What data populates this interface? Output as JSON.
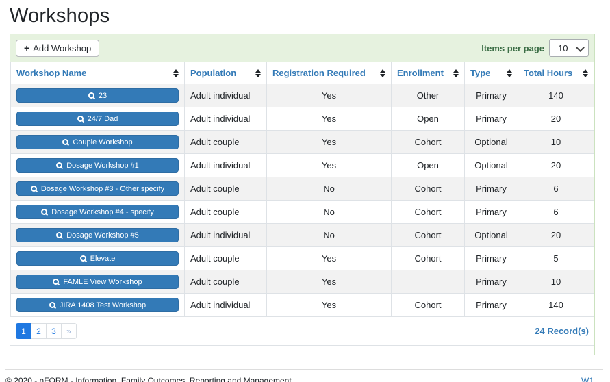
{
  "page": {
    "title": "Workshops"
  },
  "toolbar": {
    "add_button_label": "Add Workshop",
    "add_button_plus": "+",
    "items_per_page_label": "Items per page",
    "items_per_page_value": "10"
  },
  "table": {
    "columns": [
      "Workshop Name",
      "Population",
      "Registration Required",
      "Enrollment",
      "Type",
      "Total Hours"
    ],
    "rows": [
      {
        "name": "23",
        "population": "Adult individual",
        "registration_required": "Yes",
        "enrollment": "Other",
        "type": "Primary",
        "total_hours": "140"
      },
      {
        "name": "24/7 Dad",
        "population": "Adult individual",
        "registration_required": "Yes",
        "enrollment": "Open",
        "type": "Primary",
        "total_hours": "20"
      },
      {
        "name": "Couple Workshop",
        "population": "Adult couple",
        "registration_required": "Yes",
        "enrollment": "Cohort",
        "type": "Optional",
        "total_hours": "10"
      },
      {
        "name": "Dosage Workshop #1",
        "population": "Adult individual",
        "registration_required": "Yes",
        "enrollment": "Open",
        "type": "Optional",
        "total_hours": "20"
      },
      {
        "name": "Dosage Workshop #3 - Other specify",
        "population": "Adult couple",
        "registration_required": "No",
        "enrollment": "Cohort",
        "type": "Primary",
        "total_hours": "6"
      },
      {
        "name": "Dosage Workshop #4 - specify",
        "population": "Adult couple",
        "registration_required": "No",
        "enrollment": "Cohort",
        "type": "Primary",
        "total_hours": "6"
      },
      {
        "name": "Dosage Workshop #5",
        "population": "Adult individual",
        "registration_required": "No",
        "enrollment": "Cohort",
        "type": "Optional",
        "total_hours": "20"
      },
      {
        "name": "Elevate",
        "population": "Adult couple",
        "registration_required": "Yes",
        "enrollment": "Cohort",
        "type": "Primary",
        "total_hours": "5"
      },
      {
        "name": "FAMLE View Workshop",
        "population": "Adult couple",
        "registration_required": "Yes",
        "enrollment": "",
        "type": "Primary",
        "total_hours": "10"
      },
      {
        "name": "JIRA 1408 Test Workshop",
        "population": "Adult individual",
        "registration_required": "Yes",
        "enrollment": "Cohort",
        "type": "Primary",
        "total_hours": "140"
      }
    ]
  },
  "pagination": {
    "pages": [
      "1",
      "2",
      "3"
    ],
    "active_page": "1",
    "next_label": "»",
    "records_label": "24 Record(s)"
  },
  "footer": {
    "copyright": "© 2020 - nFORM - Information, Family Outcomes, Reporting and Management",
    "version": "W1"
  },
  "colors": {
    "accent_blue": "#337ab7",
    "active_page_blue": "#1f78e1",
    "toolbar_bg": "#e6f2df",
    "panel_border": "#cbe2bf",
    "items_label_green": "#3c6e46",
    "stripe_gray": "#f2f2f2",
    "cell_border": "#dee2e6"
  }
}
